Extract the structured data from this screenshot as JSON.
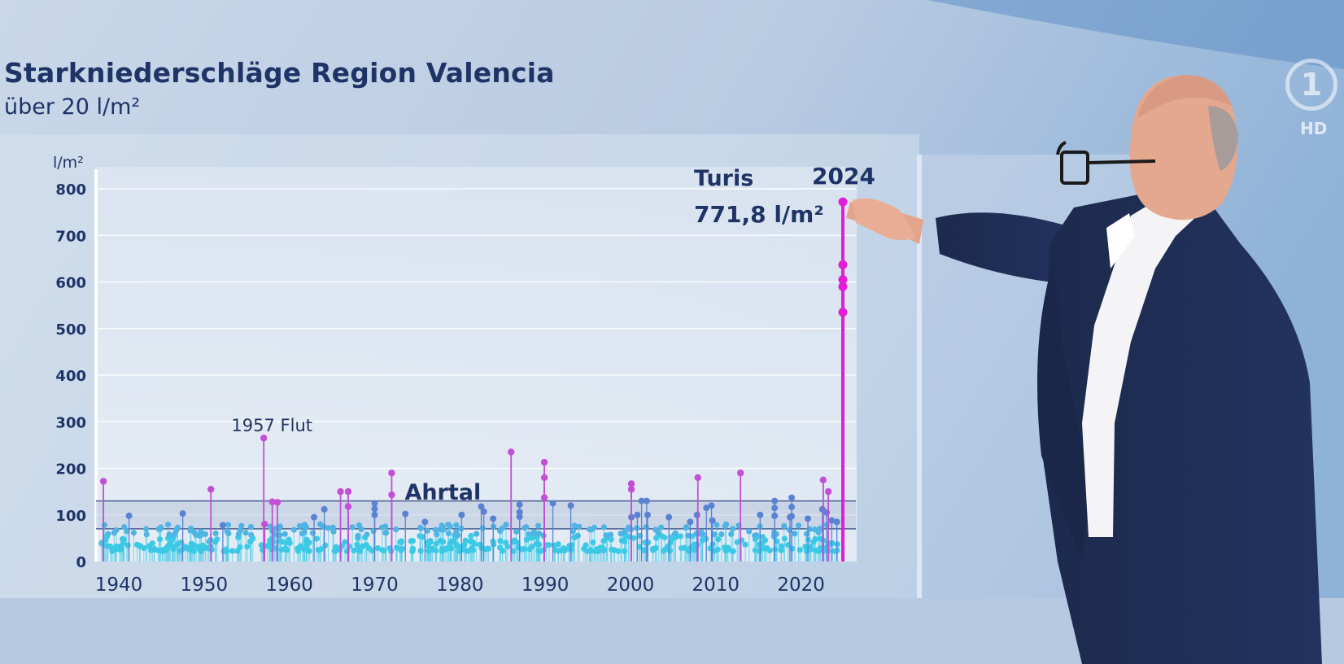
{
  "header": {
    "title": "Starkniederschläge Region Valencia",
    "subtitle": "über 20 l/m²"
  },
  "broadcaster": {
    "logo_text": "1",
    "badge": "HD"
  },
  "colors": {
    "title": "#1e3466",
    "low_points": "#3cc9e6",
    "mid_points": "#5a82d2",
    "high_points": "#c24fd6",
    "extreme": "#e11ed6",
    "gridline": "#ffffff",
    "band": "#4a6090"
  },
  "chart_data": {
    "type": "scatter",
    "ylabel": "l/m²",
    "xlim": [
      1937,
      2026
    ],
    "ylim": [
      0,
      820
    ],
    "y_ticks": [
      0,
      100,
      200,
      300,
      400,
      500,
      600,
      700,
      800
    ],
    "x_ticks": [
      1940,
      1950,
      1960,
      1970,
      1980,
      1990,
      2000,
      2010,
      2020
    ],
    "grid": true,
    "reference_lines": [
      {
        "y": 130,
        "label": "Ahrtal"
      },
      {
        "y": 70,
        "label": ""
      }
    ],
    "annotations": [
      {
        "text": "1957 Flut",
        "x": 1957,
        "y": 265
      },
      {
        "text": "Ahrtal",
        "x": 1977,
        "y": 130
      },
      {
        "text": "Turis",
        "x": 2024.9,
        "y": 771.8
      },
      {
        "text": "2024",
        "x": 2024.9,
        "y": 771.8
      },
      {
        "text": "771,8 l/m²",
        "x": 2024.9,
        "y": 771.8
      }
    ],
    "highlight_points": [
      {
        "x": 1938.2,
        "y": 172
      },
      {
        "x": 1950.8,
        "y": 155
      },
      {
        "x": 1957.0,
        "y": 265
      },
      {
        "x": 1957.1,
        "y": 80
      },
      {
        "x": 1958.0,
        "y": 128
      },
      {
        "x": 1958.6,
        "y": 127
      },
      {
        "x": 1966.0,
        "y": 150
      },
      {
        "x": 1966.9,
        "y": 150
      },
      {
        "x": 1966.9,
        "y": 118
      },
      {
        "x": 1972.0,
        "y": 190
      },
      {
        "x": 1972.0,
        "y": 143
      },
      {
        "x": 1986.0,
        "y": 235
      },
      {
        "x": 1989.9,
        "y": 213
      },
      {
        "x": 1989.9,
        "y": 180
      },
      {
        "x": 1989.9,
        "y": 137
      },
      {
        "x": 2000.1,
        "y": 167
      },
      {
        "x": 2000.1,
        "y": 155
      },
      {
        "x": 2007.9,
        "y": 180
      },
      {
        "x": 2012.9,
        "y": 190
      },
      {
        "x": 2022.6,
        "y": 175
      },
      {
        "x": 2023.2,
        "y": 150
      },
      {
        "x": 2024.9,
        "y": 771.8
      },
      {
        "x": 2024.9,
        "y": 637
      },
      {
        "x": 2024.9,
        "y": 605
      },
      {
        "x": 2024.9,
        "y": 590
      },
      {
        "x": 2024.9,
        "y": 535
      }
    ],
    "mid_points": [
      {
        "x": 1941.2,
        "y": 98
      },
      {
        "x": 1947.5,
        "y": 103
      },
      {
        "x": 1952.2,
        "y": 78
      },
      {
        "x": 1962.9,
        "y": 95
      },
      {
        "x": 1964.1,
        "y": 112
      },
      {
        "x": 1970.0,
        "y": 125
      },
      {
        "x": 1970.0,
        "y": 113
      },
      {
        "x": 1970.0,
        "y": 100
      },
      {
        "x": 1973.6,
        "y": 102
      },
      {
        "x": 1975.9,
        "y": 85
      },
      {
        "x": 1980.2,
        "y": 100
      },
      {
        "x": 1982.5,
        "y": 118
      },
      {
        "x": 1982.8,
        "y": 107
      },
      {
        "x": 1983.9,
        "y": 92
      },
      {
        "x": 1987.0,
        "y": 122
      },
      {
        "x": 1987.0,
        "y": 106
      },
      {
        "x": 1987.0,
        "y": 96
      },
      {
        "x": 1990.9,
        "y": 125
      },
      {
        "x": 1993.0,
        "y": 120
      },
      {
        "x": 2000.1,
        "y": 95
      },
      {
        "x": 2000.8,
        "y": 100
      },
      {
        "x": 2001.3,
        "y": 130
      },
      {
        "x": 2001.9,
        "y": 130
      },
      {
        "x": 2002.0,
        "y": 100
      },
      {
        "x": 2004.5,
        "y": 95
      },
      {
        "x": 2007.0,
        "y": 85
      },
      {
        "x": 2007.8,
        "y": 100
      },
      {
        "x": 2008.9,
        "y": 115
      },
      {
        "x": 2009.5,
        "y": 120
      },
      {
        "x": 2009.6,
        "y": 88
      },
      {
        "x": 2015.2,
        "y": 100
      },
      {
        "x": 2016.9,
        "y": 130
      },
      {
        "x": 2016.9,
        "y": 115
      },
      {
        "x": 2016.9,
        "y": 98
      },
      {
        "x": 2018.7,
        "y": 95
      },
      {
        "x": 2018.9,
        "y": 137
      },
      {
        "x": 2018.9,
        "y": 117
      },
      {
        "x": 2018.9,
        "y": 97
      },
      {
        "x": 2020.8,
        "y": 92
      },
      {
        "x": 2022.5,
        "y": 112
      },
      {
        "x": 2023.0,
        "y": 105
      },
      {
        "x": 2023.6,
        "y": 88
      },
      {
        "x": 2024.2,
        "y": 85
      }
    ]
  }
}
